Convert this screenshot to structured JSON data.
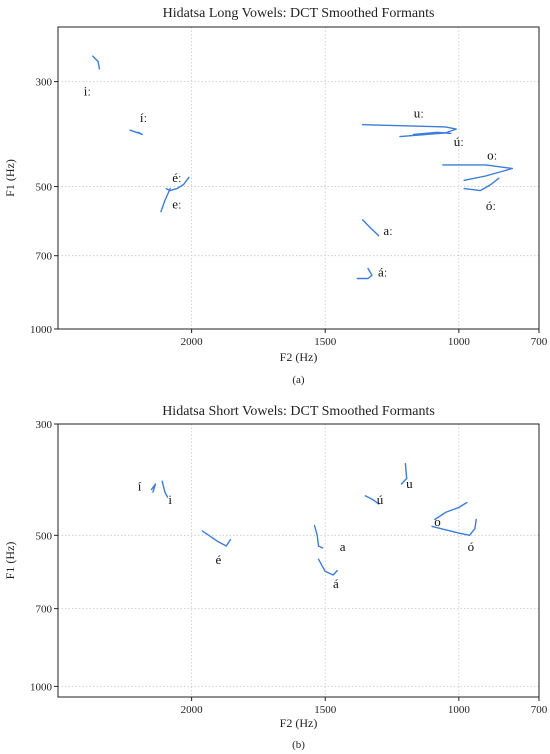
{
  "chart_data": [
    {
      "type": "line",
      "title": "Hidatsa Long Vowels: DCT Smoothed Formants",
      "xlabel": "F2 (Hz)",
      "ylabel": "F1 (Hz)",
      "caption": "(a)",
      "x_reversed": true,
      "y_reversed": true,
      "xlim": [
        2500,
        700
      ],
      "ylim": [
        230,
        1000
      ],
      "x_ticks": [
        2000,
        1500,
        1000,
        700
      ],
      "y_ticks": [
        300,
        500,
        700,
        1000
      ],
      "grid": true,
      "line_color": "#3b7dd8",
      "series": [
        {
          "name": "iː",
          "label_at": [
            2390,
            315
          ],
          "points": [
            [
              2370,
              265
            ],
            [
              2350,
              272
            ],
            [
              2345,
              282
            ]
          ]
        },
        {
          "name": "íː",
          "label_at": [
            2180,
            358
          ],
          "points": [
            [
              2230,
              380
            ],
            [
              2200,
              385
            ],
            [
              2185,
              388
            ],
            [
              2200,
              384
            ]
          ]
        },
        {
          "name": "éː",
          "label_at": [
            2055,
            480
          ],
          "points": [
            [
              2095,
              505
            ],
            [
              2080,
              510
            ],
            [
              2055,
              505
            ],
            [
              2030,
              495
            ],
            [
              2010,
              478
            ]
          ]
        },
        {
          "name": "eː",
          "label_at": [
            2055,
            545
          ],
          "points": [
            [
              2080,
              505
            ],
            [
              2100,
              535
            ],
            [
              2115,
              565
            ]
          ]
        },
        {
          "name": "uː",
          "label_at": [
            1150,
            350
          ],
          "points": [
            [
              1360,
              370
            ],
            [
              1200,
              372
            ],
            [
              1050,
              374
            ],
            [
              1010,
              378
            ],
            [
              1050,
              385
            ],
            [
              1220,
              392
            ]
          ]
        },
        {
          "name": "úː",
          "label_at": [
            1000,
            403
          ],
          "points": [
            [
              1170,
              388
            ],
            [
              1080,
              384
            ],
            [
              1030,
              386
            ]
          ]
        },
        {
          "name": "oː",
          "label_at": [
            875,
            430
          ],
          "points": [
            [
              1060,
              450
            ],
            [
              900,
              450
            ],
            [
              800,
              458
            ],
            [
              900,
              475
            ],
            [
              980,
              485
            ]
          ]
        },
        {
          "name": "óː",
          "label_at": [
            880,
            550
          ],
          "points": [
            [
              980,
              505
            ],
            [
              920,
              510
            ],
            [
              880,
              495
            ],
            [
              850,
              480
            ]
          ]
        },
        {
          "name": "aː",
          "label_at": [
            1265,
            620
          ],
          "points": [
            [
              1360,
              588
            ],
            [
              1330,
              612
            ],
            [
              1300,
              635
            ]
          ]
        },
        {
          "name": "áː",
          "label_at": [
            1285,
            760
          ],
          "points": [
            [
              1340,
              745
            ],
            [
              1325,
              770
            ],
            [
              1340,
              782
            ],
            [
              1380,
              782
            ]
          ]
        }
      ]
    },
    {
      "type": "line",
      "title": "Hidatsa Short Vowels: DCT Smoothed Formants",
      "xlabel": "F2 (Hz)",
      "ylabel": "F1 (Hz)",
      "caption": "(b)",
      "x_reversed": true,
      "y_reversed": true,
      "xlim": [
        2500,
        700
      ],
      "ylim": [
        300,
        1050
      ],
      "x_ticks": [
        2000,
        1500,
        1000,
        700
      ],
      "y_ticks": [
        300,
        500,
        700,
        1000
      ],
      "grid": true,
      "line_color": "#3b7dd8",
      "series": [
        {
          "name": "í",
          "label_at": [
            2195,
            400
          ],
          "points": [
            [
              2150,
              405
            ],
            [
              2135,
              395
            ],
            [
              2145,
              410
            ]
          ]
        },
        {
          "name": "i",
          "label_at": [
            2080,
            425
          ],
          "points": [
            [
              2110,
              390
            ],
            [
              2100,
              410
            ],
            [
              2090,
              420
            ]
          ]
        },
        {
          "name": "é",
          "label_at": [
            1900,
            560
          ],
          "points": [
            [
              1960,
              490
            ],
            [
              1900,
              515
            ],
            [
              1870,
              525
            ],
            [
              1855,
              510
            ]
          ]
        },
        {
          "name": "a",
          "label_at": [
            1435,
            527
          ],
          "points": [
            [
              1540,
              478
            ],
            [
              1530,
              500
            ],
            [
              1525,
              525
            ],
            [
              1510,
              530
            ]
          ]
        },
        {
          "name": "á",
          "label_at": [
            1460,
            625
          ],
          "points": [
            [
              1525,
              558
            ],
            [
              1500,
              590
            ],
            [
              1470,
              600
            ],
            [
              1455,
              588
            ]
          ]
        },
        {
          "name": "ú",
          "label_at": [
            1295,
            425
          ],
          "points": [
            [
              1350,
              417
            ],
            [
              1320,
              425
            ],
            [
              1300,
              433
            ]
          ]
        },
        {
          "name": "u",
          "label_at": [
            1185,
            395
          ],
          "points": [
            [
              1200,
              360
            ],
            [
              1195,
              385
            ],
            [
              1215,
              395
            ]
          ]
        },
        {
          "name": "o",
          "label_at": [
            1080,
            470
          ],
          "points": [
            [
              1090,
              465
            ],
            [
              1050,
              450
            ],
            [
              1000,
              440
            ],
            [
              970,
              430
            ]
          ]
        },
        {
          "name": "ó",
          "label_at": [
            955,
            527
          ],
          "points": [
            [
              1100,
              480
            ],
            [
              1000,
              495
            ],
            [
              960,
              500
            ],
            [
              940,
              485
            ],
            [
              935,
              465
            ]
          ]
        }
      ]
    }
  ]
}
